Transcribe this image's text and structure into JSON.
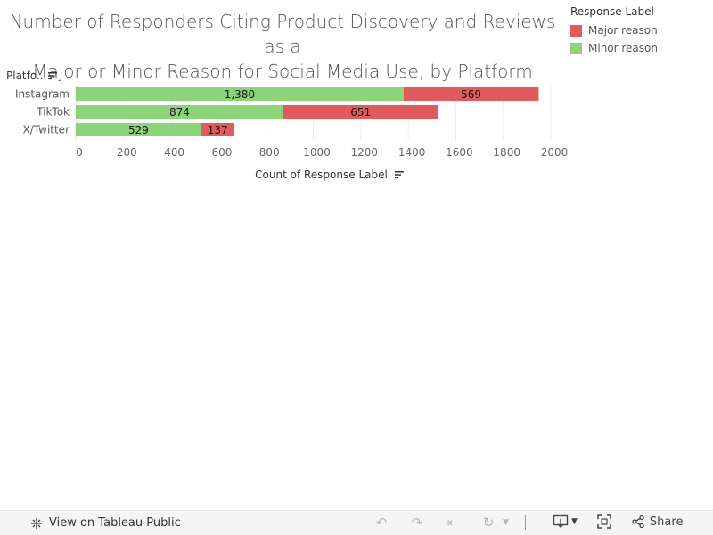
{
  "chart_data": {
    "type": "bar",
    "orientation": "horizontal",
    "stacked": true,
    "title": "Number of Responders Citing Product Discovery and Reviews as a Major or Minor Reason for Social Media Use, by Platform",
    "title_lines": [
      "Number of Responders Citing Product Discovery and Reviews as a",
      "Major or Minor Reason for Social Media Use, by Platform"
    ],
    "categories": [
      "Instagram",
      "TikTok",
      "X/Twitter"
    ],
    "series": [
      {
        "name": "Minor reason",
        "values": [
          1380,
          874,
          529
        ],
        "labels": [
          "1,380",
          "874",
          "529"
        ],
        "color": "#8dd37a"
      },
      {
        "name": "Major reason",
        "values": [
          569,
          651,
          137
        ],
        "labels": [
          "569",
          "651",
          "137"
        ],
        "color": "#e05a5e"
      }
    ],
    "xlabel": "Count of Response Label",
    "ylabel": "Platfo..",
    "xlim": [
      0,
      2000
    ],
    "xticks": [
      0,
      200,
      400,
      600,
      800,
      1000,
      1200,
      1400,
      1600,
      1800,
      2000
    ],
    "legend": {
      "title": "Response Label",
      "position": "top-right",
      "items": [
        "Major reason",
        "Minor reason"
      ]
    },
    "grid": true
  },
  "legend": {
    "title": "Response Label",
    "items": [
      {
        "label": "Major reason",
        "color": "#e05a5e"
      },
      {
        "label": "Minor reason",
        "color": "#8dd37a"
      }
    ]
  },
  "row_header": "Platfo..",
  "axis_title": "Count of Response Label",
  "toolbar": {
    "view_label": "View on Tableau Public",
    "share_label": "Share"
  }
}
